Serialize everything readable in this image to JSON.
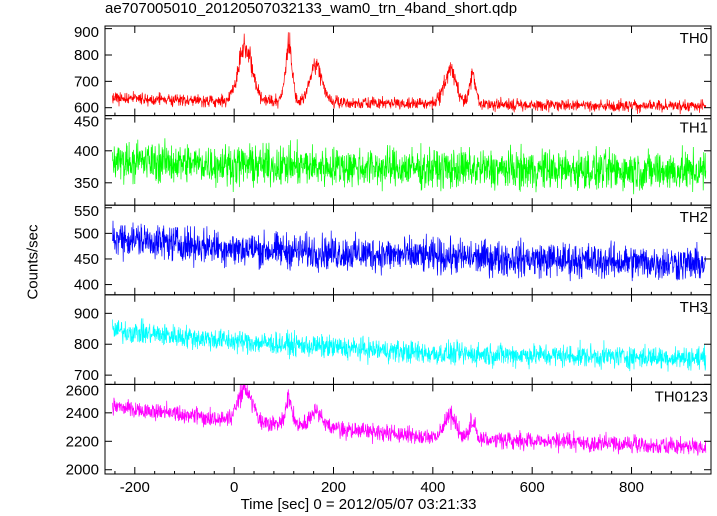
{
  "title": "ae707005010_20120507032133_wam0_trn_4band_short.qdp",
  "chart_data": {
    "type": "line",
    "title": "ae707005010_20120507032133_wam0_trn_4band_short.qdp",
    "xlabel": "Time [sec] 0 = 2012/05/07 03:21:33",
    "ylabel": "Counts/sec",
    "xlim": [
      -260,
      960
    ],
    "data_x_range": [
      -245,
      950
    ],
    "x_ticks": [
      -200,
      0,
      200,
      400,
      600,
      800
    ],
    "grid": false,
    "panels": [
      {
        "name": "TH0",
        "color": "#ff0000",
        "ylim": [
          570,
          910
        ],
        "y_ticks": [
          600,
          700,
          800,
          900
        ],
        "baseline": [
          [
            -245,
            635
          ],
          [
            0,
            625
          ],
          [
            300,
            618
          ],
          [
            600,
            610
          ],
          [
            950,
            605
          ]
        ],
        "noise": 28,
        "peaks": [
          {
            "x": 22,
            "height": 210,
            "width": 14
          },
          {
            "x": 110,
            "height": 210,
            "width": 7
          },
          {
            "x": 165,
            "height": 140,
            "width": 12
          },
          {
            "x": 435,
            "height": 125,
            "width": 12
          },
          {
            "x": 480,
            "height": 115,
            "width": 6
          }
        ]
      },
      {
        "name": "TH1",
        "color": "#00ff00",
        "ylim": [
          315,
          455
        ],
        "y_ticks": [
          350,
          400,
          450
        ],
        "baseline": [
          [
            -245,
            385
          ],
          [
            0,
            378
          ],
          [
            400,
            372
          ],
          [
            950,
            368
          ]
        ],
        "noise": 38,
        "peaks": []
      },
      {
        "name": "TH2",
        "color": "#0000ff",
        "ylim": [
          380,
          555
        ],
        "y_ticks": [
          400,
          450,
          500,
          550
        ],
        "baseline": [
          [
            -245,
            492
          ],
          [
            0,
            470
          ],
          [
            400,
            455
          ],
          [
            950,
            440
          ]
        ],
        "noise": 42,
        "peaks": []
      },
      {
        "name": "TH3",
        "color": "#00ffff",
        "ylim": [
          670,
          960
        ],
        "y_ticks": [
          700,
          800,
          900
        ],
        "baseline": [
          [
            -245,
            845
          ],
          [
            0,
            810
          ],
          [
            400,
            770
          ],
          [
            950,
            755
          ]
        ],
        "noise": 45,
        "peaks": []
      },
      {
        "name": "TH0123",
        "color": "#ff00ff",
        "ylim": [
          1970,
          2600
        ],
        "y_ticks": [
          2000,
          2200,
          2400,
          2600
        ],
        "baseline": [
          [
            -245,
            2440
          ],
          [
            0,
            2350
          ],
          [
            400,
            2230
          ],
          [
            950,
            2160
          ]
        ],
        "noise": 75,
        "peaks": [
          {
            "x": 22,
            "height": 230,
            "width": 14
          },
          {
            "x": 110,
            "height": 200,
            "width": 6
          },
          {
            "x": 165,
            "height": 110,
            "width": 12
          },
          {
            "x": 435,
            "height": 160,
            "width": 12
          },
          {
            "x": 480,
            "height": 120,
            "width": 6
          }
        ]
      }
    ]
  }
}
